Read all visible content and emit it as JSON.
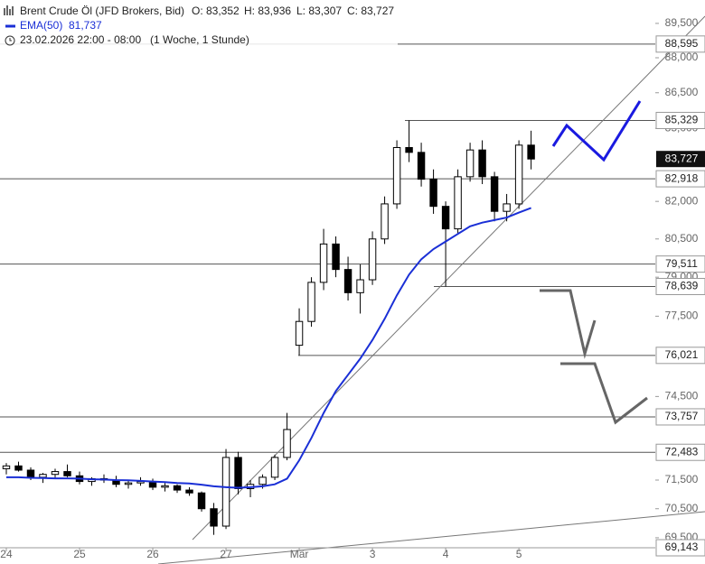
{
  "header": {
    "symbol": "Brent Crude Öl (JFD Brokers, Bid)",
    "ohlc": [
      "O: 83,352",
      "H: 83,936",
      "L: 83,307",
      "C: 83,727"
    ],
    "indicator_value": "81,737",
    "period": "23.02.2026 22:00 - 08:00",
    "interval": "(1 Woche, 1 Stunde)"
  },
  "chart_data": {
    "type": "candlestick",
    "log_scale": true,
    "xlim": [
      -2.07,
      212.7
    ],
    "ylim": [
      69160,
      90535
    ],
    "xticks": [
      {
        "value": 0,
        "label": "24"
      },
      {
        "value": 24,
        "label": "25"
      },
      {
        "value": 48,
        "label": "26"
      },
      {
        "value": 72,
        "label": "27"
      },
      {
        "value": 96,
        "label": "Mär"
      },
      {
        "value": 120,
        "label": "3"
      },
      {
        "value": 144,
        "label": "4"
      },
      {
        "value": 168,
        "label": "5"
      }
    ],
    "yticks": [
      {
        "value": 89500,
        "label": "89,500"
      },
      {
        "value": 88000,
        "label": "88,000"
      },
      {
        "value": 86500,
        "label": "86,500"
      },
      {
        "value": 85000,
        "label": "85,000"
      },
      {
        "value": 82000,
        "label": "82,000"
      },
      {
        "value": 80500,
        "label": "80,500"
      },
      {
        "value": 79000,
        "label": "79,000"
      },
      {
        "value": 77500,
        "label": "77,500"
      },
      {
        "value": 74500,
        "label": "74,500"
      },
      {
        "value": 71500,
        "label": "71,500"
      },
      {
        "value": 70500,
        "label": "70,500"
      },
      {
        "value": 69500,
        "label": "69,500"
      }
    ],
    "x": [
      0,
      4,
      8,
      12,
      16,
      20,
      24,
      28,
      32,
      36,
      40,
      44,
      48,
      52,
      56,
      60,
      64,
      68,
      72,
      76,
      80,
      84,
      88,
      92,
      96,
      100,
      104,
      108,
      112,
      116,
      120,
      124,
      128,
      132,
      136,
      140,
      144,
      148,
      152,
      156,
      160,
      164,
      168,
      172
    ],
    "open": [
      71900,
      72000,
      71850,
      71600,
      71700,
      71800,
      71650,
      71450,
      71550,
      71500,
      71350,
      71400,
      71450,
      71250,
      71300,
      71150,
      71050,
      70500,
      69900,
      72300,
      71200,
      71350,
      71600,
      72300,
      76400,
      77300,
      78800,
      80300,
      79300,
      78400,
      78900,
      80500,
      81900,
      84200,
      84000,
      82900,
      81800,
      80900,
      83000,
      84100,
      83000,
      81600,
      81900,
      84300
    ],
    "high": [
      72100,
      72150,
      71950,
      71750,
      71900,
      72050,
      71800,
      71600,
      71700,
      71650,
      71500,
      71600,
      71550,
      71400,
      71350,
      71250,
      71100,
      70700,
      72600,
      72500,
      71500,
      71700,
      72400,
      73900,
      77800,
      79000,
      80900,
      80600,
      79800,
      79500,
      80800,
      82200,
      84500,
      85329,
      84400,
      83300,
      82000,
      83300,
      84400,
      84500,
      83200,
      82300,
      84500,
      84900
    ],
    "low": [
      71700,
      71800,
      71500,
      71400,
      71550,
      71600,
      71350,
      71300,
      71400,
      71250,
      71200,
      71300,
      71150,
      71100,
      71050,
      70950,
      70400,
      69600,
      69800,
      71000,
      70900,
      71200,
      71500,
      72200,
      76021,
      77100,
      78500,
      79000,
      78100,
      77600,
      78700,
      80300,
      81700,
      83600,
      82600,
      81500,
      78639,
      80700,
      82800,
      82700,
      81200,
      81200,
      81700,
      83300
    ],
    "close": [
      72000,
      71850,
      71600,
      71700,
      71800,
      71650,
      71450,
      71550,
      71500,
      71350,
      71400,
      71450,
      71250,
      71300,
      71150,
      71050,
      70500,
      69900,
      72300,
      71200,
      71350,
      71600,
      72300,
      73300,
      77300,
      78800,
      80300,
      79300,
      78400,
      78900,
      80500,
      81900,
      84200,
      84000,
      82900,
      81800,
      80900,
      83000,
      84100,
      83000,
      81600,
      81900,
      84300,
      83727
    ],
    "candle_color": "#000000",
    "series": [
      {
        "name": "EMA(50)",
        "color": "#1a2fd6",
        "values": [
          71600,
          71600,
          71580,
          71570,
          71560,
          71560,
          71550,
          71530,
          71520,
          71500,
          71490,
          71470,
          71450,
          71430,
          71400,
          71380,
          71340,
          71280,
          71250,
          71230,
          71250,
          71280,
          71350,
          71550,
          72200,
          73000,
          73900,
          74700,
          75300,
          75900,
          76600,
          77400,
          78300,
          79100,
          79700,
          80100,
          80400,
          80700,
          81000,
          81150,
          81250,
          81350,
          81550,
          81737
        ]
      }
    ],
    "levels": [
      {
        "value": 88595,
        "label": "88,595"
      },
      {
        "value": 85329,
        "label": "85,329"
      },
      {
        "value": 82918,
        "label": "82,918"
      },
      {
        "value": 79511,
        "label": "79,511"
      },
      {
        "value": 78639,
        "label": "78,639"
      },
      {
        "value": 76021,
        "label": "76,021"
      },
      {
        "value": 73757,
        "label": "73,757"
      },
      {
        "value": 72483,
        "label": "72,483"
      },
      {
        "value": 69143,
        "label": "69,143"
      }
    ],
    "last_price": {
      "value": 83727,
      "label": "83,727"
    }
  }
}
